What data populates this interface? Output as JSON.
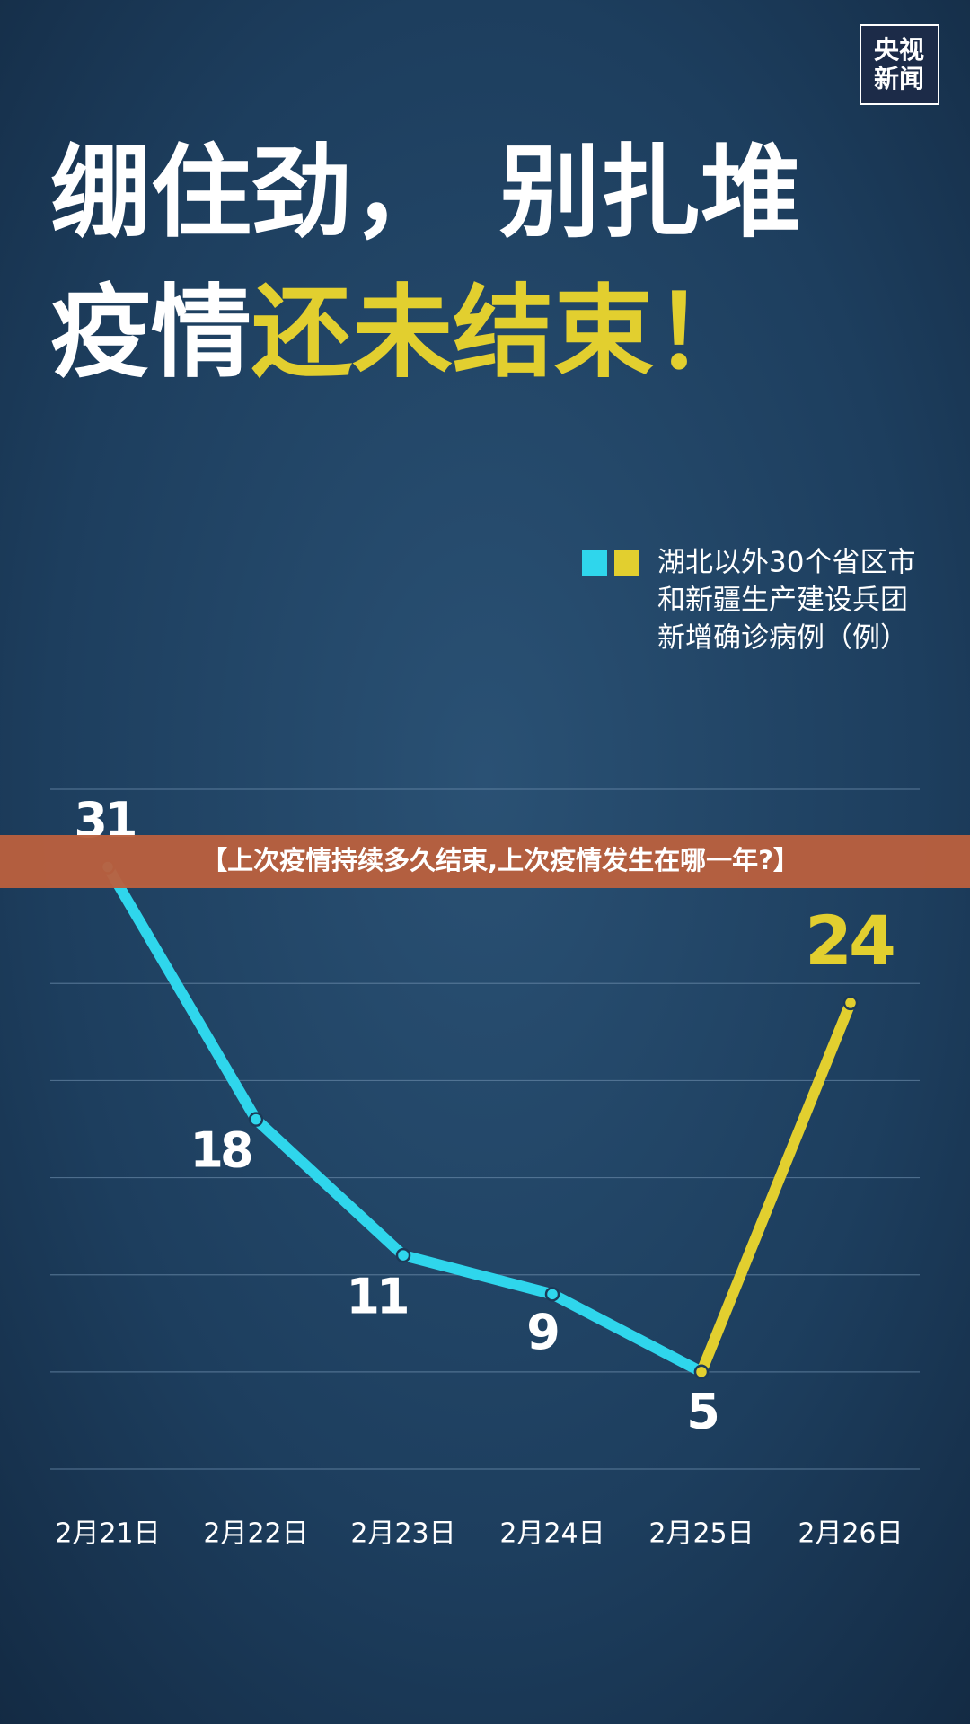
{
  "chart_data": {
    "type": "line",
    "logo": [
      "央视",
      "新闻"
    ],
    "title_line1": [
      "绷住劲，",
      "别扎堆"
    ],
    "title_line2": [
      "疫情",
      "还未结束！"
    ],
    "legend_text": [
      "湖北以外30个省区市",
      "和新疆生产建设兵团",
      "新增确诊病例（例）"
    ],
    "banner": "【上次疫情持续多久结束,上次疫情发生在哪一年?】",
    "categories": [
      "2月21日",
      "2月22日",
      "2月23日",
      "2月24日",
      "2月25日",
      "2月26日"
    ],
    "series": [
      {
        "color": "#2fd6ec",
        "values": [
          31,
          18,
          11,
          9,
          5,
          null
        ]
      },
      {
        "color": "#e2cf2f",
        "values": [
          null,
          null,
          null,
          null,
          5,
          24
        ]
      }
    ],
    "ylim": [
      0,
      35
    ],
    "grid_lines": [
      0,
      5,
      10,
      15,
      20,
      25,
      30,
      35
    ],
    "grid": true
  }
}
